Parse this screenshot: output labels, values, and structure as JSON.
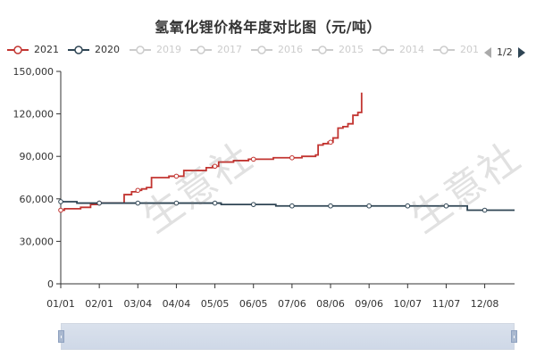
{
  "title": "氢氧化锂价格年度对比图（元/吨）",
  "legend": [
    {
      "label": "2021",
      "color": "#c23531",
      "active": true
    },
    {
      "label": "2020",
      "color": "#2f4554",
      "active": true
    },
    {
      "label": "2019",
      "color": "#cccccc",
      "active": false
    },
    {
      "label": "2017",
      "color": "#cccccc",
      "active": false
    },
    {
      "label": "2016",
      "color": "#cccccc",
      "active": false
    },
    {
      "label": "2015",
      "color": "#cccccc",
      "active": false
    },
    {
      "label": "2014",
      "color": "#cccccc",
      "active": false
    },
    {
      "label": "201",
      "color": "#cccccc",
      "active": false
    }
  ],
  "pager": {
    "label": "1/2"
  },
  "watermark": "生意社",
  "chart_data": {
    "type": "line",
    "title": "氢氧化锂价格年度对比图（元/吨）",
    "x_domain": [
      1,
      366
    ],
    "xticks": [
      {
        "label": "01/01",
        "x": 1
      },
      {
        "label": "02/01",
        "x": 32
      },
      {
        "label": "03/04",
        "x": 63
      },
      {
        "label": "04/04",
        "x": 94
      },
      {
        "label": "05/05",
        "x": 125
      },
      {
        "label": "06/05",
        "x": 156
      },
      {
        "label": "07/06",
        "x": 187
      },
      {
        "label": "08/06",
        "x": 218
      },
      {
        "label": "09/06",
        "x": 249
      },
      {
        "label": "10/07",
        "x": 280
      },
      {
        "label": "11/07",
        "x": 311
      },
      {
        "label": "12/08",
        "x": 342
      }
    ],
    "ylim": [
      0,
      150000
    ],
    "yticks": [
      0,
      30000,
      60000,
      90000,
      120000,
      150000
    ],
    "ytick_labels": [
      "0",
      "30,000",
      "60,000",
      "90,000",
      "120,000",
      "150,000"
    ],
    "grid": false,
    "series": [
      {
        "name": "2021",
        "color": "#c23531",
        "step": true,
        "points": [
          [
            1,
            52000
          ],
          [
            4,
            53000
          ],
          [
            17,
            54000
          ],
          [
            25,
            56000
          ],
          [
            31,
            57000
          ],
          [
            52,
            63000
          ],
          [
            58,
            65000
          ],
          [
            62,
            66000
          ],
          [
            66,
            67000
          ],
          [
            70,
            68000
          ],
          [
            74,
            75000
          ],
          [
            88,
            76000
          ],
          [
            100,
            80000
          ],
          [
            118,
            82000
          ],
          [
            123,
            83000
          ],
          [
            128,
            86000
          ],
          [
            140,
            87000
          ],
          [
            152,
            88000
          ],
          [
            172,
            89000
          ],
          [
            195,
            90000
          ],
          [
            206,
            91000
          ],
          [
            208,
            98000
          ],
          [
            212,
            99000
          ],
          [
            216,
            100000
          ],
          [
            220,
            103000
          ],
          [
            224,
            110000
          ],
          [
            228,
            111000
          ],
          [
            232,
            113000
          ],
          [
            236,
            119000
          ],
          [
            240,
            121000
          ],
          [
            243,
            135000
          ]
        ],
        "markers": [
          1,
          32,
          63,
          94,
          125,
          156,
          187,
          218
        ]
      },
      {
        "name": "2020",
        "color": "#2f4554",
        "step": true,
        "points": [
          [
            1,
            58000
          ],
          [
            14,
            57000
          ],
          [
            48,
            57000
          ],
          [
            122,
            57000
          ],
          [
            130,
            56000
          ],
          [
            174,
            55000
          ],
          [
            250,
            55000
          ],
          [
            315,
            55000
          ],
          [
            328,
            52000
          ],
          [
            366,
            52000
          ]
        ],
        "markers": [
          1,
          32,
          63,
          94,
          125,
          156,
          187,
          218,
          249,
          280,
          311,
          342
        ]
      }
    ]
  }
}
